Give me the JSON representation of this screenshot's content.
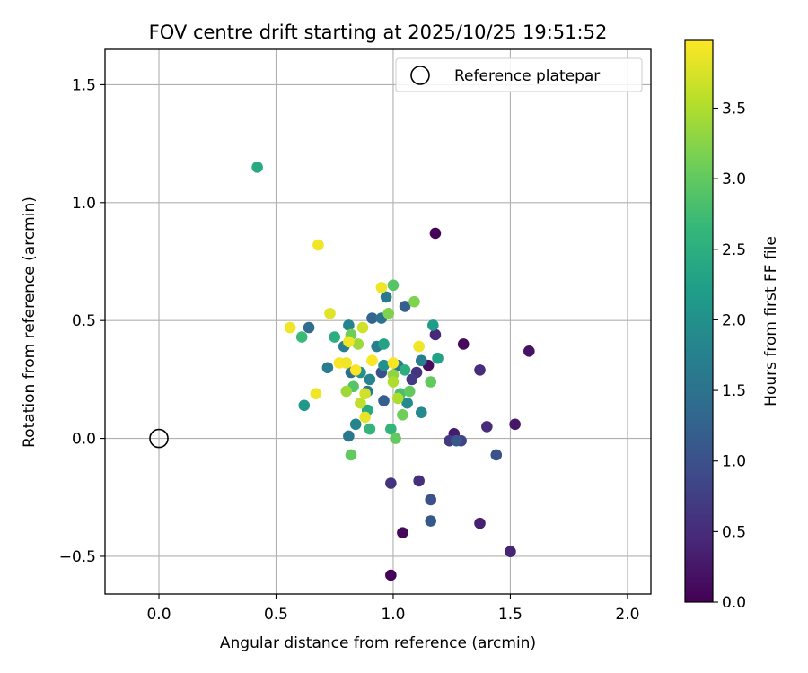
{
  "chart_data": {
    "type": "scatter",
    "title": "FOV centre drift starting at 2025/10/25 19:51:52",
    "xlabel": "Angular distance from reference (arcmin)",
    "ylabel": "Rotation from reference (arcmin)",
    "xlim": [
      -0.23,
      2.1
    ],
    "ylim": [
      -0.66,
      1.65
    ],
    "xticks": [
      0.0,
      0.5,
      1.0,
      1.5,
      2.0
    ],
    "xtick_labels": [
      "0.0",
      "0.5",
      "1.0",
      "1.5",
      "2.0"
    ],
    "yticks": [
      -0.5,
      0.0,
      0.5,
      1.0,
      1.5
    ],
    "ytick_labels": [
      "−0.5",
      "0.0",
      "0.5",
      "1.0",
      "1.5"
    ],
    "grid": true,
    "legend": {
      "position": "top-right",
      "entries": [
        "Reference platepar"
      ]
    },
    "reference_point": {
      "x": 0.0,
      "y": 0.0,
      "label": "Reference platepar",
      "marker": "open-circle"
    },
    "colorbar": {
      "label": "Hours from first FF file",
      "range": [
        0.0,
        3.98
      ],
      "ticks": [
        0.0,
        0.5,
        1.0,
        1.5,
        2.0,
        2.5,
        3.0,
        3.5
      ],
      "tick_labels": [
        "0.0",
        "0.5",
        "1.0",
        "1.5",
        "2.0",
        "2.5",
        "3.0",
        "3.5"
      ],
      "colormap": "viridis",
      "colormap_stops": [
        "#440154",
        "#482878",
        "#3e4989",
        "#31688e",
        "#26828e",
        "#1f9e89",
        "#35b779",
        "#6ece58",
        "#b5de2b",
        "#fde725"
      ]
    },
    "points": [
      {
        "x": 1.18,
        "y": 0.87,
        "h": 0.05
      },
      {
        "x": 0.99,
        "y": -0.58,
        "h": 0.05
      },
      {
        "x": 1.04,
        "y": -0.4,
        "h": 0.08
      },
      {
        "x": 1.3,
        "y": 0.4,
        "h": 0.1
      },
      {
        "x": 1.15,
        "y": 0.31,
        "h": 0.15
      },
      {
        "x": 1.52,
        "y": 0.06,
        "h": 0.25
      },
      {
        "x": 1.58,
        "y": 0.37,
        "h": 0.2
      },
      {
        "x": 1.26,
        "y": 0.02,
        "h": 0.3
      },
      {
        "x": 1.5,
        "y": -0.48,
        "h": 0.4
      },
      {
        "x": 1.37,
        "y": -0.36,
        "h": 0.35
      },
      {
        "x": 1.18,
        "y": 0.44,
        "h": 0.45
      },
      {
        "x": 1.4,
        "y": 0.05,
        "h": 0.5
      },
      {
        "x": 1.37,
        "y": 0.29,
        "h": 0.5
      },
      {
        "x": 1.11,
        "y": -0.18,
        "h": 0.55
      },
      {
        "x": 0.99,
        "y": -0.19,
        "h": 0.6
      },
      {
        "x": 1.24,
        "y": -0.01,
        "h": 0.7
      },
      {
        "x": 1.1,
        "y": 0.28,
        "h": 0.6
      },
      {
        "x": 1.08,
        "y": 0.25,
        "h": 0.7
      },
      {
        "x": 1.29,
        "y": -0.01,
        "h": 0.8
      },
      {
        "x": 1.44,
        "y": -0.07,
        "h": 1.0
      },
      {
        "x": 1.16,
        "y": -0.26,
        "h": 1.0
      },
      {
        "x": 1.16,
        "y": -0.35,
        "h": 1.1
      },
      {
        "x": 1.27,
        "y": -0.01,
        "h": 1.1
      },
      {
        "x": 0.95,
        "y": 0.28,
        "h": 1.0
      },
      {
        "x": 1.05,
        "y": 0.56,
        "h": 1.2
      },
      {
        "x": 0.96,
        "y": 0.16,
        "h": 1.2
      },
      {
        "x": 0.91,
        "y": 0.51,
        "h": 1.3
      },
      {
        "x": 0.64,
        "y": 0.47,
        "h": 1.4
      },
      {
        "x": 0.82,
        "y": 0.28,
        "h": 1.4
      },
      {
        "x": 0.95,
        "y": 0.51,
        "h": 1.5
      },
      {
        "x": 0.97,
        "y": 0.6,
        "h": 1.6
      },
      {
        "x": 0.81,
        "y": 0.01,
        "h": 1.6
      },
      {
        "x": 0.89,
        "y": 0.2,
        "h": 1.6
      },
      {
        "x": 0.93,
        "y": 0.39,
        "h": 1.7
      },
      {
        "x": 0.72,
        "y": 0.3,
        "h": 1.7
      },
      {
        "x": 1.12,
        "y": 0.33,
        "h": 1.7
      },
      {
        "x": 1.02,
        "y": 0.31,
        "h": 1.6
      },
      {
        "x": 0.81,
        "y": 0.48,
        "h": 1.8
      },
      {
        "x": 0.84,
        "y": 0.06,
        "h": 1.8
      },
      {
        "x": 0.9,
        "y": 0.25,
        "h": 1.8
      },
      {
        "x": 1.12,
        "y": 0.11,
        "h": 1.9
      },
      {
        "x": 1.06,
        "y": 0.15,
        "h": 1.9
      },
      {
        "x": 0.79,
        "y": 0.39,
        "h": 1.7
      },
      {
        "x": 0.62,
        "y": 0.14,
        "h": 2.1
      },
      {
        "x": 0.86,
        "y": 0.28,
        "h": 2.0
      },
      {
        "x": 0.96,
        "y": 0.31,
        "h": 2.0
      },
      {
        "x": 1.17,
        "y": 0.48,
        "h": 2.2
      },
      {
        "x": 1.19,
        "y": 0.34,
        "h": 2.3
      },
      {
        "x": 0.96,
        "y": 0.4,
        "h": 2.3
      },
      {
        "x": 0.42,
        "y": 1.15,
        "h": 2.4
      },
      {
        "x": 0.75,
        "y": 0.43,
        "h": 2.5
      },
      {
        "x": 0.89,
        "y": 0.12,
        "h": 2.4
      },
      {
        "x": 1.05,
        "y": 0.29,
        "h": 2.5
      },
      {
        "x": 0.99,
        "y": 0.04,
        "h": 2.6
      },
      {
        "x": 0.61,
        "y": 0.43,
        "h": 2.7
      },
      {
        "x": 0.9,
        "y": 0.04,
        "h": 2.6
      },
      {
        "x": 0.83,
        "y": 0.22,
        "h": 2.9
      },
      {
        "x": 1.03,
        "y": 0.19,
        "h": 2.8
      },
      {
        "x": 1.0,
        "y": 0.65,
        "h": 2.9
      },
      {
        "x": 0.82,
        "y": -0.07,
        "h": 3.0
      },
      {
        "x": 1.07,
        "y": 0.2,
        "h": 3.0
      },
      {
        "x": 1.16,
        "y": 0.24,
        "h": 3.0
      },
      {
        "x": 1.01,
        "y": 0.0,
        "h": 3.0
      },
      {
        "x": 1.04,
        "y": 0.1,
        "h": 3.1
      },
      {
        "x": 0.98,
        "y": 0.53,
        "h": 3.2
      },
      {
        "x": 1.09,
        "y": 0.58,
        "h": 3.2
      },
      {
        "x": 0.82,
        "y": 0.44,
        "h": 3.1
      },
      {
        "x": 1.0,
        "y": 0.27,
        "h": 3.3
      },
      {
        "x": 0.8,
        "y": 0.2,
        "h": 3.4
      },
      {
        "x": 0.85,
        "y": 0.4,
        "h": 3.4
      },
      {
        "x": 1.0,
        "y": 0.24,
        "h": 3.5
      },
      {
        "x": 0.86,
        "y": 0.15,
        "h": 3.6
      },
      {
        "x": 1.02,
        "y": 0.17,
        "h": 3.5
      },
      {
        "x": 0.88,
        "y": 0.19,
        "h": 3.7
      },
      {
        "x": 0.73,
        "y": 0.53,
        "h": 3.8
      },
      {
        "x": 0.87,
        "y": 0.47,
        "h": 3.7
      },
      {
        "x": 0.56,
        "y": 0.47,
        "h": 3.9
      },
      {
        "x": 0.68,
        "y": 0.82,
        "h": 3.9
      },
      {
        "x": 0.67,
        "y": 0.19,
        "h": 3.9
      },
      {
        "x": 0.77,
        "y": 0.32,
        "h": 3.95
      },
      {
        "x": 0.8,
        "y": 0.32,
        "h": 3.9
      },
      {
        "x": 0.84,
        "y": 0.29,
        "h": 3.95
      },
      {
        "x": 0.81,
        "y": 0.41,
        "h": 3.9
      },
      {
        "x": 0.91,
        "y": 0.33,
        "h": 3.95
      },
      {
        "x": 0.95,
        "y": 0.64,
        "h": 3.9
      },
      {
        "x": 1.0,
        "y": 0.32,
        "h": 3.95
      },
      {
        "x": 1.11,
        "y": 0.39,
        "h": 3.9
      },
      {
        "x": 0.88,
        "y": 0.09,
        "h": 3.85
      }
    ]
  }
}
